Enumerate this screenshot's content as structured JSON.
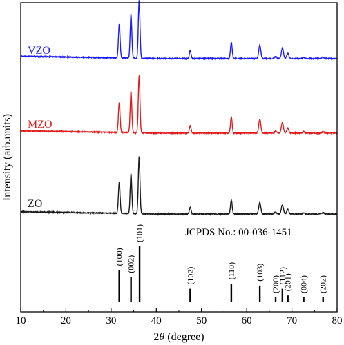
{
  "chart_data": {
    "type": "line",
    "xlabel_italic": "θ",
    "xlabel_prefix": "2",
    "xlabel_suffix": " (degree)",
    "ylabel": "Intensity (arb.units)",
    "xlim": [
      10,
      80
    ],
    "xticks": [
      "10",
      "20",
      "30",
      "40",
      "50",
      "60",
      "70",
      "80"
    ],
    "y_ticks_shown": false,
    "grid": false,
    "reference_label": "JCPDS No.: 00-036-1451",
    "series": [
      {
        "name": "VZO",
        "color": "#1a1aff",
        "baseline": 0.9,
        "peaks": [
          {
            "x": 31.8,
            "h": 13.5
          },
          {
            "x": 34.4,
            "h": 17.5
          },
          {
            "x": 36.2,
            "h": 23.5
          },
          {
            "x": 47.5,
            "h": 3.2
          },
          {
            "x": 56.6,
            "h": 6.5
          },
          {
            "x": 62.9,
            "h": 5.3
          },
          {
            "x": 66.4,
            "h": 0.8
          },
          {
            "x": 67.9,
            "h": 4.3
          },
          {
            "x": 69.1,
            "h": 2.0
          },
          {
            "x": 72.6,
            "h": 0.5
          },
          {
            "x": 76.9,
            "h": 0.6
          }
        ]
      },
      {
        "name": "MZO",
        "color": "#e31b1b",
        "baseline": 0.6,
        "peaks": [
          {
            "x": 31.8,
            "h": 12.0
          },
          {
            "x": 34.4,
            "h": 16.5
          },
          {
            "x": 36.2,
            "h": 23.0
          },
          {
            "x": 47.5,
            "h": 3.0
          },
          {
            "x": 56.6,
            "h": 6.5
          },
          {
            "x": 62.9,
            "h": 5.6
          },
          {
            "x": 66.4,
            "h": 0.8
          },
          {
            "x": 67.9,
            "h": 4.3
          },
          {
            "x": 69.1,
            "h": 2.0
          },
          {
            "x": 72.6,
            "h": 0.5
          },
          {
            "x": 76.9,
            "h": 0.6
          }
        ]
      },
      {
        "name": "ZO",
        "color": "#1a1a1a",
        "baseline": 0.0,
        "peaks": [
          {
            "x": 31.8,
            "h": 12.5
          },
          {
            "x": 34.4,
            "h": 16.0
          },
          {
            "x": 36.2,
            "h": 23.0
          },
          {
            "x": 47.5,
            "h": 2.7
          },
          {
            "x": 56.6,
            "h": 5.6
          },
          {
            "x": 62.9,
            "h": 4.6
          },
          {
            "x": 66.4,
            "h": 0.8
          },
          {
            "x": 67.9,
            "h": 3.6
          },
          {
            "x": 69.1,
            "h": 1.8
          },
          {
            "x": 72.6,
            "h": 0.5
          },
          {
            "x": 76.9,
            "h": 0.6
          }
        ]
      }
    ],
    "reference_peaks": [
      {
        "x": 31.8,
        "hkl": "(100)",
        "rel": 57
      },
      {
        "x": 34.4,
        "hkl": "(002)",
        "rel": 44
      },
      {
        "x": 36.3,
        "hkl": "(101)",
        "rel": 100
      },
      {
        "x": 47.5,
        "hkl": "(102)",
        "rel": 23
      },
      {
        "x": 56.6,
        "hkl": "(110)",
        "rel": 32
      },
      {
        "x": 62.9,
        "hkl": "(103)",
        "rel": 29
      },
      {
        "x": 66.4,
        "hkl": "(200)",
        "rel": 4
      },
      {
        "x": 67.9,
        "hkl": "(112)",
        "rel": 23
      },
      {
        "x": 69.1,
        "hkl": "(201)",
        "rel": 11
      },
      {
        "x": 72.6,
        "hkl": "(004)",
        "rel": 2
      },
      {
        "x": 76.9,
        "hkl": "(202)",
        "rel": 4
      }
    ]
  }
}
